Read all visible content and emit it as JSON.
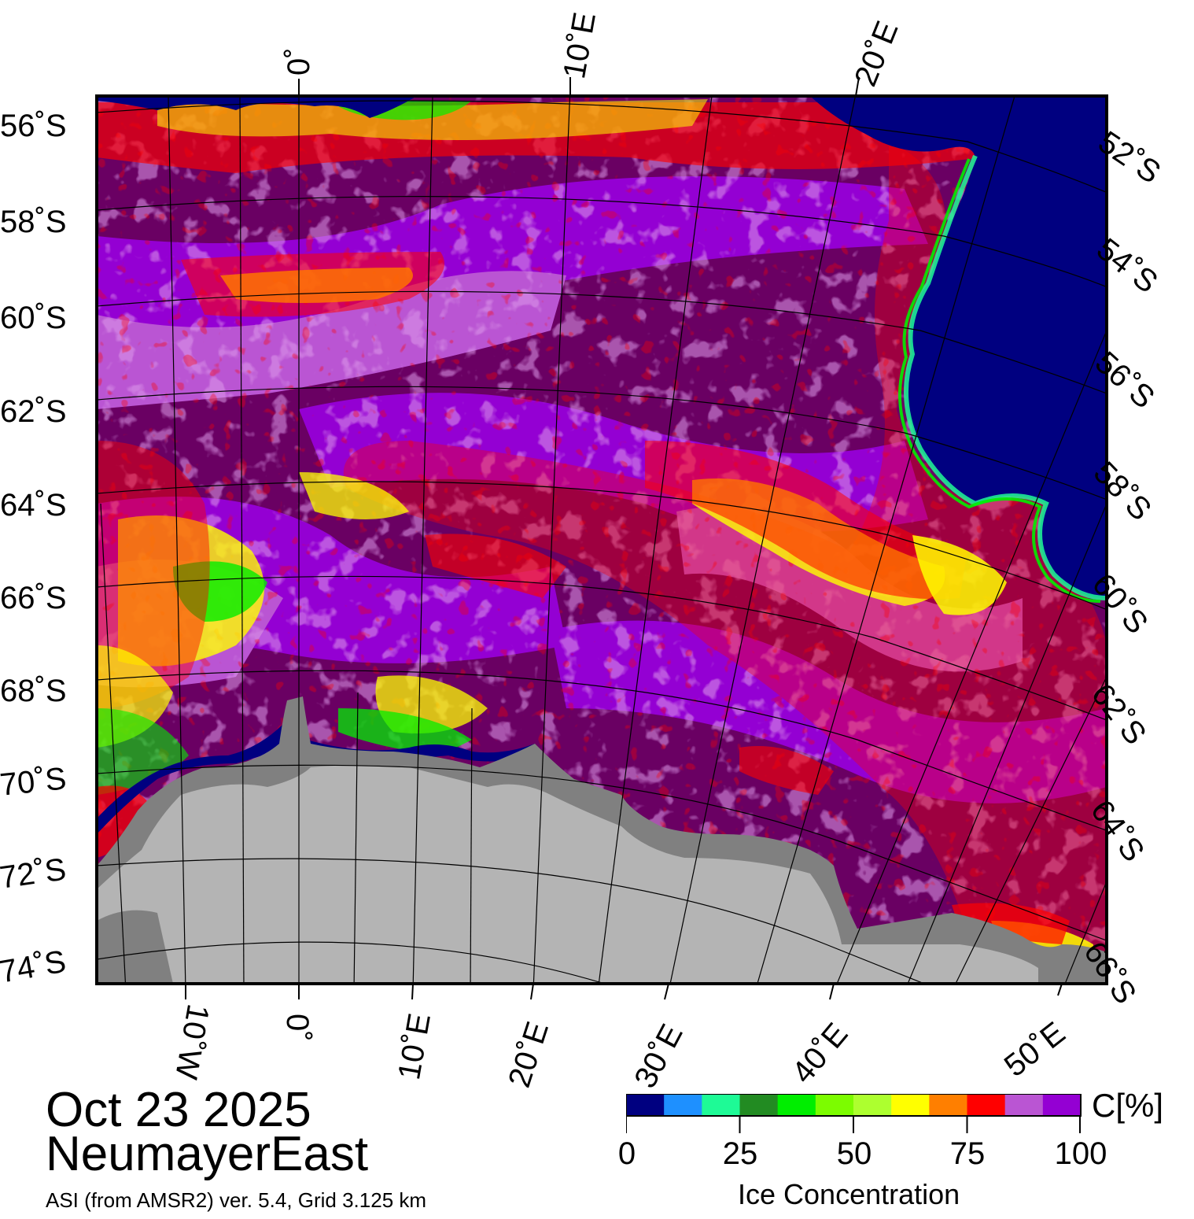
{
  "title": {
    "date": "Oct 23 2025",
    "region": "NeumayerEast"
  },
  "source": "ASI (from AMSR2) ver. 5.4,  Grid 3.125 km",
  "colorbar": {
    "title": "Ice Concentration",
    "unit": "C[%]",
    "ticks": [
      "0",
      "25",
      "50",
      "75",
      "100"
    ],
    "colors": [
      "#000080",
      "#1e90ff",
      "#1efa96",
      "#228b22",
      "#00ee00",
      "#7cfc00",
      "#adff2f",
      "#ffff00",
      "#ff7f00",
      "#ff0000",
      "#ba55d3",
      "#9400d3"
    ]
  },
  "map": {
    "colors": {
      "open_water": "#000080",
      "ice_high": "#6a0063",
      "ice_mid": "#9400d3",
      "ice_low": "#ba55d3",
      "land": "#b4b4b4",
      "ice_shelf": "#808080",
      "red": "#ff0000",
      "yellow": "#ffff00",
      "green": "#00ee00"
    },
    "left_lat_labels": [
      "56˚S",
      "58˚S",
      "60˚S",
      "62˚S",
      "64˚S",
      "66˚S",
      "68˚S",
      "70˚S",
      "72˚S",
      "74˚S"
    ],
    "right_lat_labels": [
      "52˚S",
      "54˚S",
      "56˚S",
      "58˚S",
      "60˚S",
      "62˚S",
      "64˚S",
      "66˚S"
    ],
    "top_lon_labels": [
      "0˚",
      "10˚E",
      "20˚E"
    ],
    "bottom_lon_labels": [
      "10˚W",
      "0˚",
      "10˚E",
      "20˚E",
      "30˚E",
      "40˚E",
      "50˚E"
    ]
  }
}
